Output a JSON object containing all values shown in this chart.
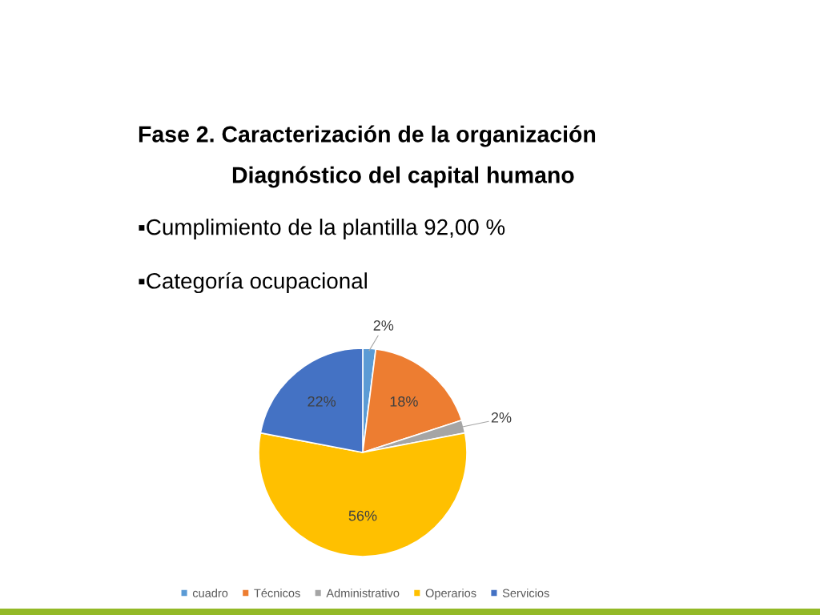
{
  "chart_data": {
    "type": "pie",
    "title": "Fase 2. Caracterización de la organización",
    "subtitle": "Diagnóstico del capital humano",
    "annotations": [
      "▪Cumplimiento de la plantilla 92,00 %",
      "▪Categoría ocupacional"
    ],
    "categories": [
      "cuadro",
      "Técnicos",
      "Administrativo",
      "Operarios",
      "Servicios"
    ],
    "values": [
      2,
      18,
      2,
      56,
      22
    ],
    "colors": [
      "#5b9bd5",
      "#ed7d31",
      "#a5a5a5",
      "#ffc000",
      "#4472c4"
    ],
    "value_labels": [
      "2%",
      "18%",
      "2%",
      "56%",
      "22%"
    ],
    "legend": "bottom"
  }
}
